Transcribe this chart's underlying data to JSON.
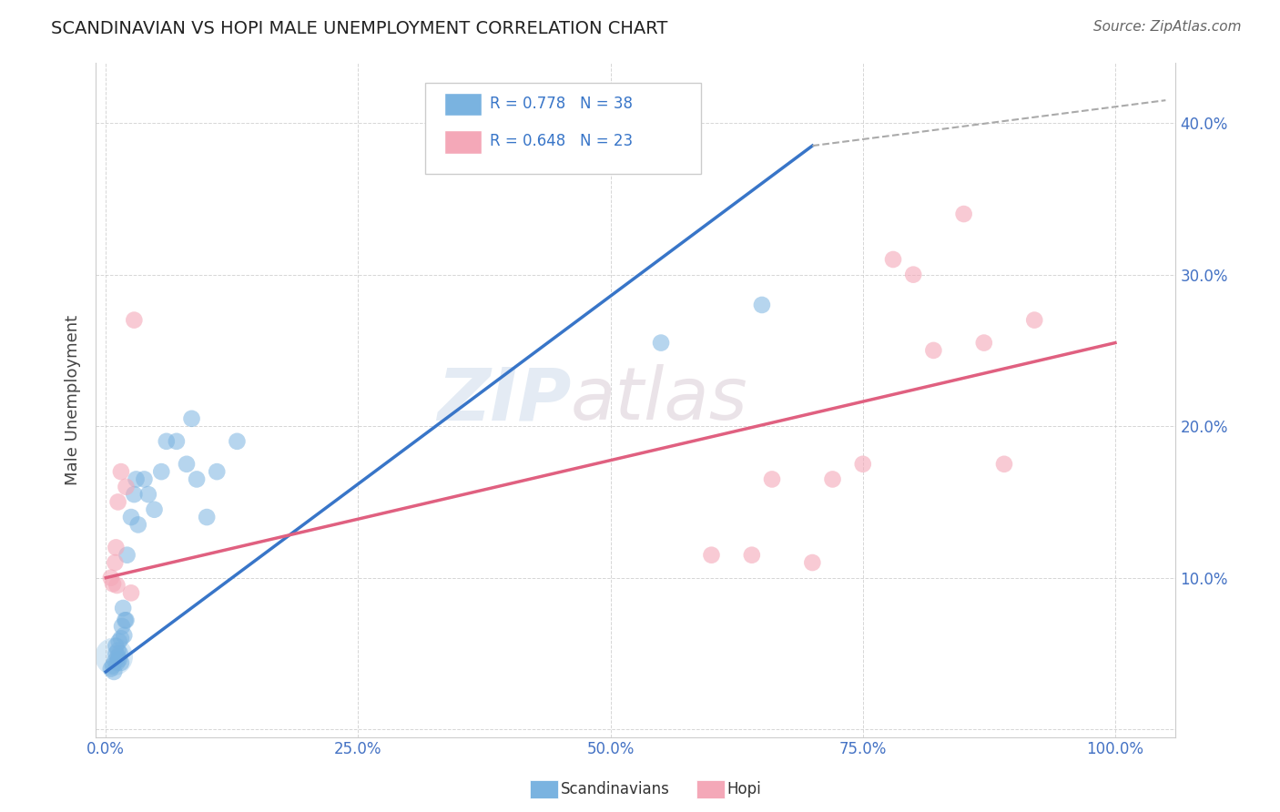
{
  "title": "SCANDINAVIAN VS HOPI MALE UNEMPLOYMENT CORRELATION CHART",
  "source": "Source: ZipAtlas.com",
  "ylabel": "Male Unemployment",
  "y_tick_labels": [
    "",
    "10.0%",
    "20.0%",
    "30.0%",
    "40.0%"
  ],
  "legend_blue_r": "R = 0.778",
  "legend_blue_n": "N = 38",
  "legend_pink_r": "R = 0.648",
  "legend_pink_n": "N = 23",
  "legend_label_blue": "Scandinavians",
  "legend_label_pink": "Hopi",
  "blue_color": "#7ab3e0",
  "pink_color": "#f4a8b8",
  "blue_line_color": "#3875c8",
  "pink_line_color": "#e06080",
  "dashed_line_color": "#aaaaaa",
  "watermark_zip": "ZIP",
  "watermark_atlas": "atlas",
  "blue_scatter_x": [
    0.005,
    0.007,
    0.008,
    0.009,
    0.01,
    0.01,
    0.011,
    0.012,
    0.012,
    0.013,
    0.013,
    0.014,
    0.015,
    0.015,
    0.016,
    0.017,
    0.018,
    0.019,
    0.02,
    0.021,
    0.025,
    0.028,
    0.03,
    0.032,
    0.038,
    0.042,
    0.048,
    0.055,
    0.06,
    0.07,
    0.08,
    0.085,
    0.09,
    0.1,
    0.11,
    0.13,
    0.55,
    0.65
  ],
  "blue_scatter_y": [
    0.04,
    0.042,
    0.038,
    0.045,
    0.05,
    0.055,
    0.044,
    0.048,
    0.052,
    0.046,
    0.058,
    0.05,
    0.044,
    0.06,
    0.068,
    0.08,
    0.062,
    0.072,
    0.072,
    0.115,
    0.14,
    0.155,
    0.165,
    0.135,
    0.165,
    0.155,
    0.145,
    0.17,
    0.19,
    0.19,
    0.175,
    0.205,
    0.165,
    0.14,
    0.17,
    0.19,
    0.255,
    0.28
  ],
  "blue_scatter_big_x": [
    0.008
  ],
  "blue_scatter_big_y": [
    0.048
  ],
  "pink_scatter_x": [
    0.005,
    0.007,
    0.009,
    0.01,
    0.011,
    0.012,
    0.015,
    0.02,
    0.025,
    0.028,
    0.6,
    0.64,
    0.66,
    0.7,
    0.72,
    0.75,
    0.78,
    0.8,
    0.82,
    0.85,
    0.87,
    0.89,
    0.92
  ],
  "pink_scatter_y": [
    0.1,
    0.096,
    0.11,
    0.12,
    0.095,
    0.15,
    0.17,
    0.16,
    0.09,
    0.27,
    0.115,
    0.115,
    0.165,
    0.11,
    0.165,
    0.175,
    0.31,
    0.3,
    0.25,
    0.34,
    0.255,
    0.175,
    0.27
  ],
  "blue_line_x": [
    0.0,
    0.7
  ],
  "blue_line_y": [
    0.038,
    0.385
  ],
  "pink_line_x": [
    0.0,
    1.0
  ],
  "pink_line_y": [
    0.1,
    0.255
  ],
  "dashed_line_x": [
    0.7,
    1.05
  ],
  "dashed_line_y": [
    0.385,
    0.415
  ],
  "xlim": [
    -0.01,
    1.06
  ],
  "ylim": [
    -0.005,
    0.44
  ],
  "x_ticks": [
    0.0,
    0.25,
    0.5,
    0.75,
    1.0
  ],
  "y_ticks": [
    0.0,
    0.1,
    0.2,
    0.3,
    0.4
  ],
  "background_color": "#ffffff",
  "grid_color": "#cccccc"
}
